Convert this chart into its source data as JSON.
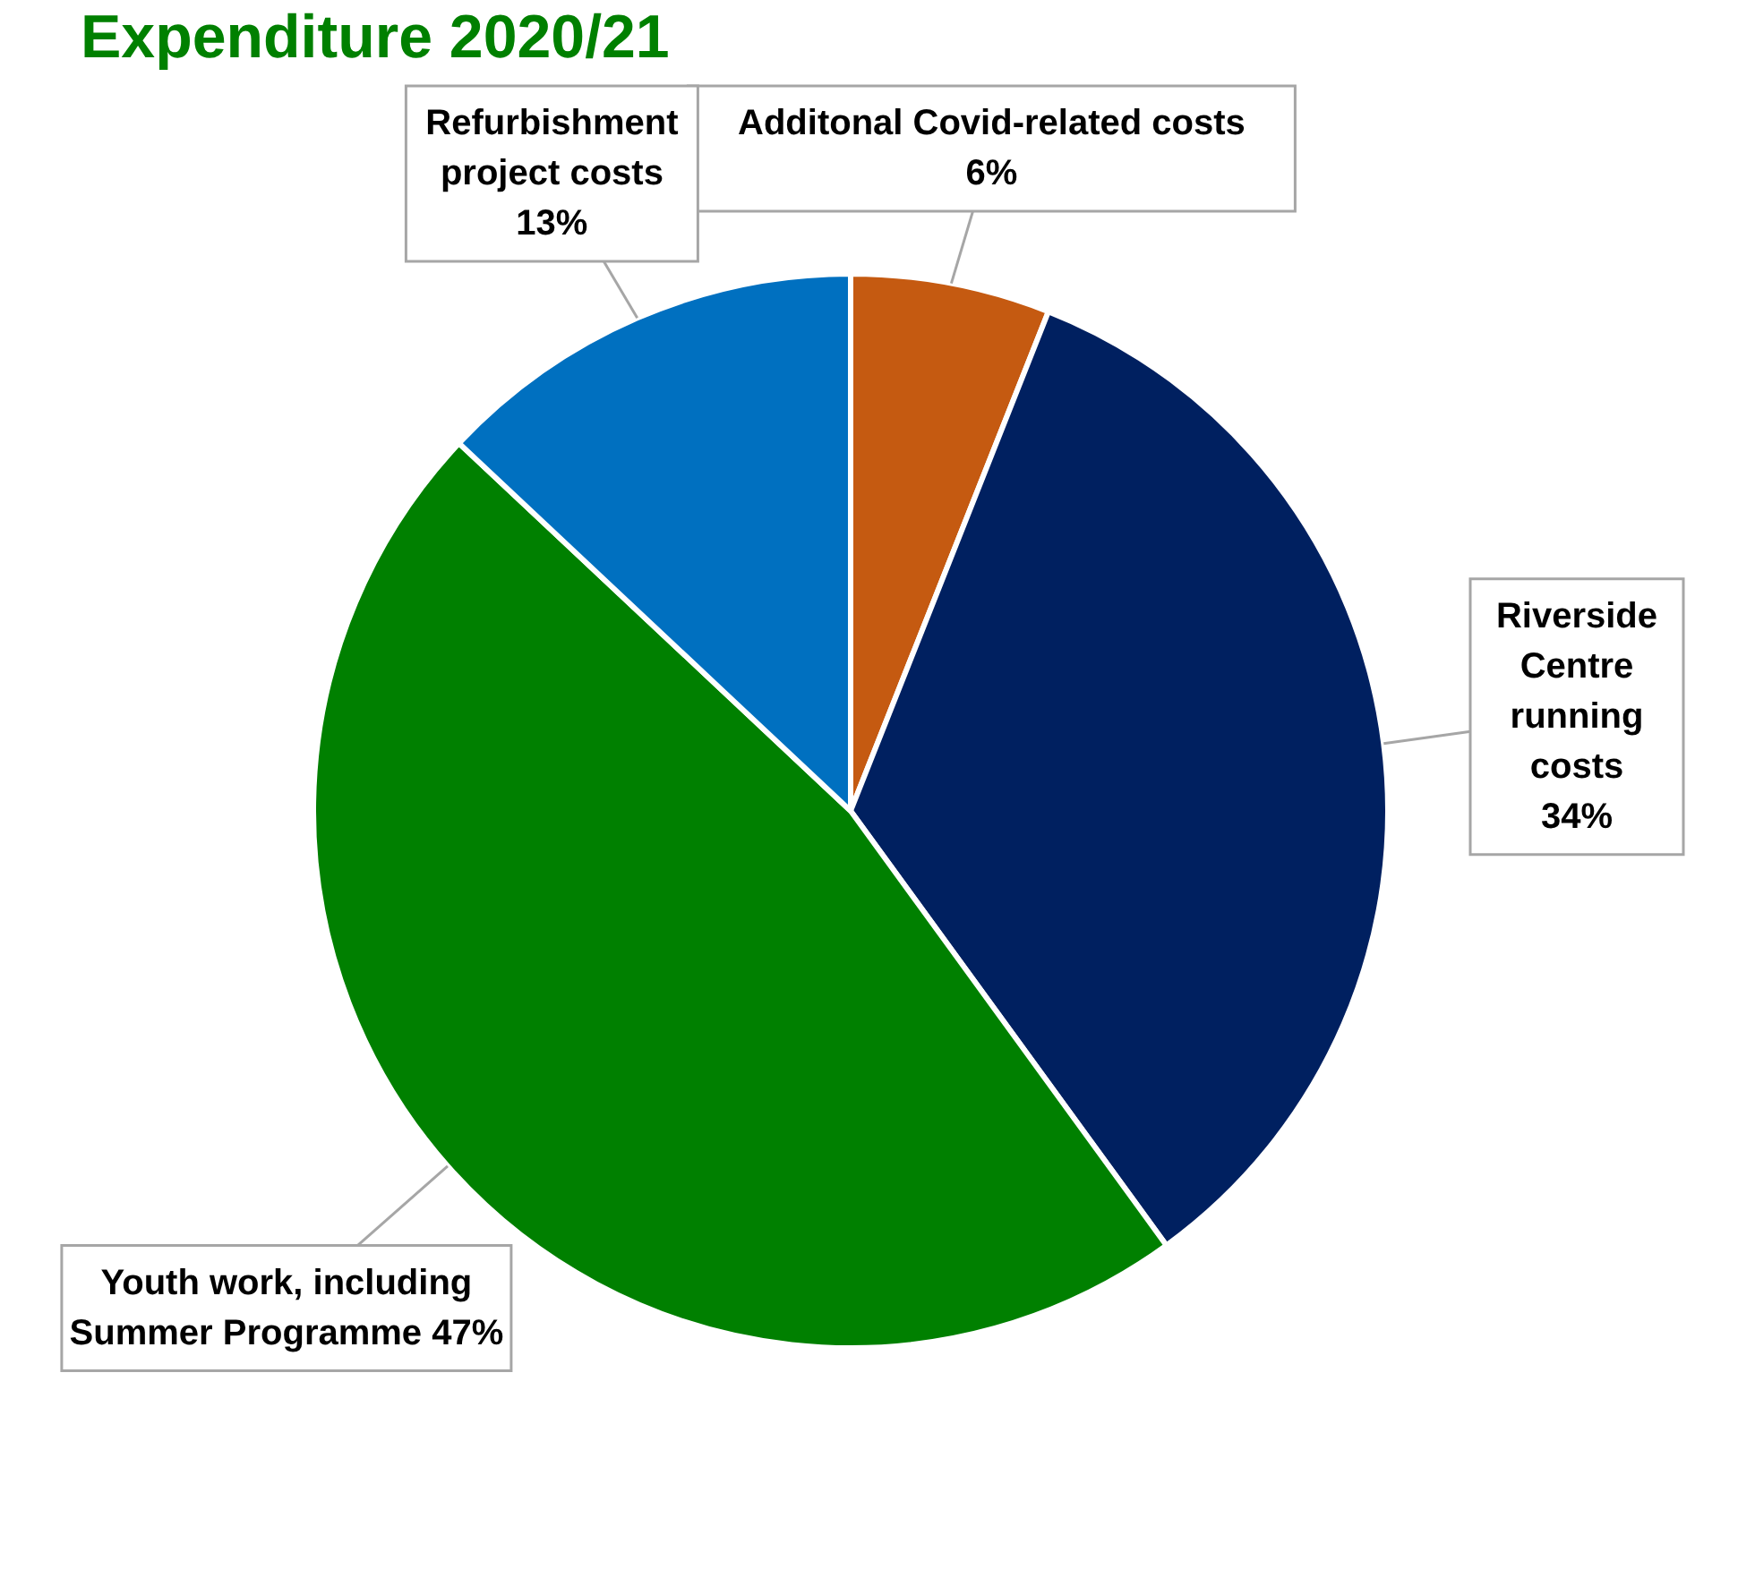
{
  "chart_data": {
    "type": "pie",
    "title": "Expenditure 2020/21",
    "categories": [
      "Additonal Covid-related costs",
      "Riverside Centre running costs",
      "Youth work, including Summer Programme",
      "Refurbishment project costs"
    ],
    "values": [
      6,
      34,
      47,
      13
    ],
    "value_labels": [
      "6%",
      "34%",
      "47%",
      "13%"
    ],
    "colors": [
      "#c55a11",
      "#002060",
      "#008000",
      "#0070c0"
    ],
    "legend": false
  }
}
